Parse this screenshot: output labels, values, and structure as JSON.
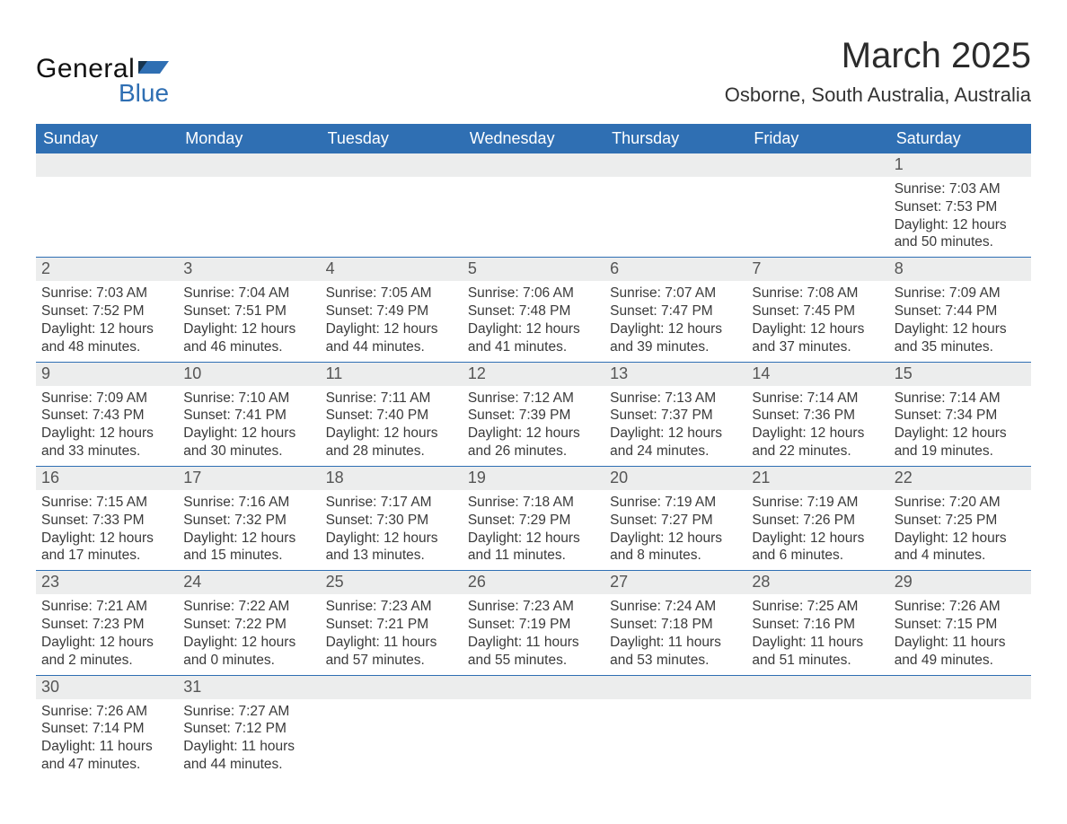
{
  "brand": {
    "word1": "General",
    "word2": "Blue",
    "flag_color": "#2f6fb3"
  },
  "title": "March 2025",
  "location": "Osborne, South Australia, Australia",
  "colors": {
    "header_bg": "#2f6fb3",
    "header_text": "#ffffff",
    "daynum_bg": "#eceded",
    "week_border": "#2f6fb3",
    "body_text": "#3a3a3a"
  },
  "day_headers": [
    "Sunday",
    "Monday",
    "Tuesday",
    "Wednesday",
    "Thursday",
    "Friday",
    "Saturday"
  ],
  "weeks": [
    [
      null,
      null,
      null,
      null,
      null,
      null,
      {
        "n": "1",
        "sunrise": "Sunrise: 7:03 AM",
        "sunset": "Sunset: 7:53 PM",
        "dl1": "Daylight: 12 hours",
        "dl2": "and 50 minutes."
      }
    ],
    [
      {
        "n": "2",
        "sunrise": "Sunrise: 7:03 AM",
        "sunset": "Sunset: 7:52 PM",
        "dl1": "Daylight: 12 hours",
        "dl2": "and 48 minutes."
      },
      {
        "n": "3",
        "sunrise": "Sunrise: 7:04 AM",
        "sunset": "Sunset: 7:51 PM",
        "dl1": "Daylight: 12 hours",
        "dl2": "and 46 minutes."
      },
      {
        "n": "4",
        "sunrise": "Sunrise: 7:05 AM",
        "sunset": "Sunset: 7:49 PM",
        "dl1": "Daylight: 12 hours",
        "dl2": "and 44 minutes."
      },
      {
        "n": "5",
        "sunrise": "Sunrise: 7:06 AM",
        "sunset": "Sunset: 7:48 PM",
        "dl1": "Daylight: 12 hours",
        "dl2": "and 41 minutes."
      },
      {
        "n": "6",
        "sunrise": "Sunrise: 7:07 AM",
        "sunset": "Sunset: 7:47 PM",
        "dl1": "Daylight: 12 hours",
        "dl2": "and 39 minutes."
      },
      {
        "n": "7",
        "sunrise": "Sunrise: 7:08 AM",
        "sunset": "Sunset: 7:45 PM",
        "dl1": "Daylight: 12 hours",
        "dl2": "and 37 minutes."
      },
      {
        "n": "8",
        "sunrise": "Sunrise: 7:09 AM",
        "sunset": "Sunset: 7:44 PM",
        "dl1": "Daylight: 12 hours",
        "dl2": "and 35 minutes."
      }
    ],
    [
      {
        "n": "9",
        "sunrise": "Sunrise: 7:09 AM",
        "sunset": "Sunset: 7:43 PM",
        "dl1": "Daylight: 12 hours",
        "dl2": "and 33 minutes."
      },
      {
        "n": "10",
        "sunrise": "Sunrise: 7:10 AM",
        "sunset": "Sunset: 7:41 PM",
        "dl1": "Daylight: 12 hours",
        "dl2": "and 30 minutes."
      },
      {
        "n": "11",
        "sunrise": "Sunrise: 7:11 AM",
        "sunset": "Sunset: 7:40 PM",
        "dl1": "Daylight: 12 hours",
        "dl2": "and 28 minutes."
      },
      {
        "n": "12",
        "sunrise": "Sunrise: 7:12 AM",
        "sunset": "Sunset: 7:39 PM",
        "dl1": "Daylight: 12 hours",
        "dl2": "and 26 minutes."
      },
      {
        "n": "13",
        "sunrise": "Sunrise: 7:13 AM",
        "sunset": "Sunset: 7:37 PM",
        "dl1": "Daylight: 12 hours",
        "dl2": "and 24 minutes."
      },
      {
        "n": "14",
        "sunrise": "Sunrise: 7:14 AM",
        "sunset": "Sunset: 7:36 PM",
        "dl1": "Daylight: 12 hours",
        "dl2": "and 22 minutes."
      },
      {
        "n": "15",
        "sunrise": "Sunrise: 7:14 AM",
        "sunset": "Sunset: 7:34 PM",
        "dl1": "Daylight: 12 hours",
        "dl2": "and 19 minutes."
      }
    ],
    [
      {
        "n": "16",
        "sunrise": "Sunrise: 7:15 AM",
        "sunset": "Sunset: 7:33 PM",
        "dl1": "Daylight: 12 hours",
        "dl2": "and 17 minutes."
      },
      {
        "n": "17",
        "sunrise": "Sunrise: 7:16 AM",
        "sunset": "Sunset: 7:32 PM",
        "dl1": "Daylight: 12 hours",
        "dl2": "and 15 minutes."
      },
      {
        "n": "18",
        "sunrise": "Sunrise: 7:17 AM",
        "sunset": "Sunset: 7:30 PM",
        "dl1": "Daylight: 12 hours",
        "dl2": "and 13 minutes."
      },
      {
        "n": "19",
        "sunrise": "Sunrise: 7:18 AM",
        "sunset": "Sunset: 7:29 PM",
        "dl1": "Daylight: 12 hours",
        "dl2": "and 11 minutes."
      },
      {
        "n": "20",
        "sunrise": "Sunrise: 7:19 AM",
        "sunset": "Sunset: 7:27 PM",
        "dl1": "Daylight: 12 hours",
        "dl2": "and 8 minutes."
      },
      {
        "n": "21",
        "sunrise": "Sunrise: 7:19 AM",
        "sunset": "Sunset: 7:26 PM",
        "dl1": "Daylight: 12 hours",
        "dl2": "and 6 minutes."
      },
      {
        "n": "22",
        "sunrise": "Sunrise: 7:20 AM",
        "sunset": "Sunset: 7:25 PM",
        "dl1": "Daylight: 12 hours",
        "dl2": "and 4 minutes."
      }
    ],
    [
      {
        "n": "23",
        "sunrise": "Sunrise: 7:21 AM",
        "sunset": "Sunset: 7:23 PM",
        "dl1": "Daylight: 12 hours",
        "dl2": "and 2 minutes."
      },
      {
        "n": "24",
        "sunrise": "Sunrise: 7:22 AM",
        "sunset": "Sunset: 7:22 PM",
        "dl1": "Daylight: 12 hours",
        "dl2": "and 0 minutes."
      },
      {
        "n": "25",
        "sunrise": "Sunrise: 7:23 AM",
        "sunset": "Sunset: 7:21 PM",
        "dl1": "Daylight: 11 hours",
        "dl2": "and 57 minutes."
      },
      {
        "n": "26",
        "sunrise": "Sunrise: 7:23 AM",
        "sunset": "Sunset: 7:19 PM",
        "dl1": "Daylight: 11 hours",
        "dl2": "and 55 minutes."
      },
      {
        "n": "27",
        "sunrise": "Sunrise: 7:24 AM",
        "sunset": "Sunset: 7:18 PM",
        "dl1": "Daylight: 11 hours",
        "dl2": "and 53 minutes."
      },
      {
        "n": "28",
        "sunrise": "Sunrise: 7:25 AM",
        "sunset": "Sunset: 7:16 PM",
        "dl1": "Daylight: 11 hours",
        "dl2": "and 51 minutes."
      },
      {
        "n": "29",
        "sunrise": "Sunrise: 7:26 AM",
        "sunset": "Sunset: 7:15 PM",
        "dl1": "Daylight: 11 hours",
        "dl2": "and 49 minutes."
      }
    ],
    [
      {
        "n": "30",
        "sunrise": "Sunrise: 7:26 AM",
        "sunset": "Sunset: 7:14 PM",
        "dl1": "Daylight: 11 hours",
        "dl2": "and 47 minutes."
      },
      {
        "n": "31",
        "sunrise": "Sunrise: 7:27 AM",
        "sunset": "Sunset: 7:12 PM",
        "dl1": "Daylight: 11 hours",
        "dl2": "and 44 minutes."
      },
      null,
      null,
      null,
      null,
      null
    ]
  ]
}
